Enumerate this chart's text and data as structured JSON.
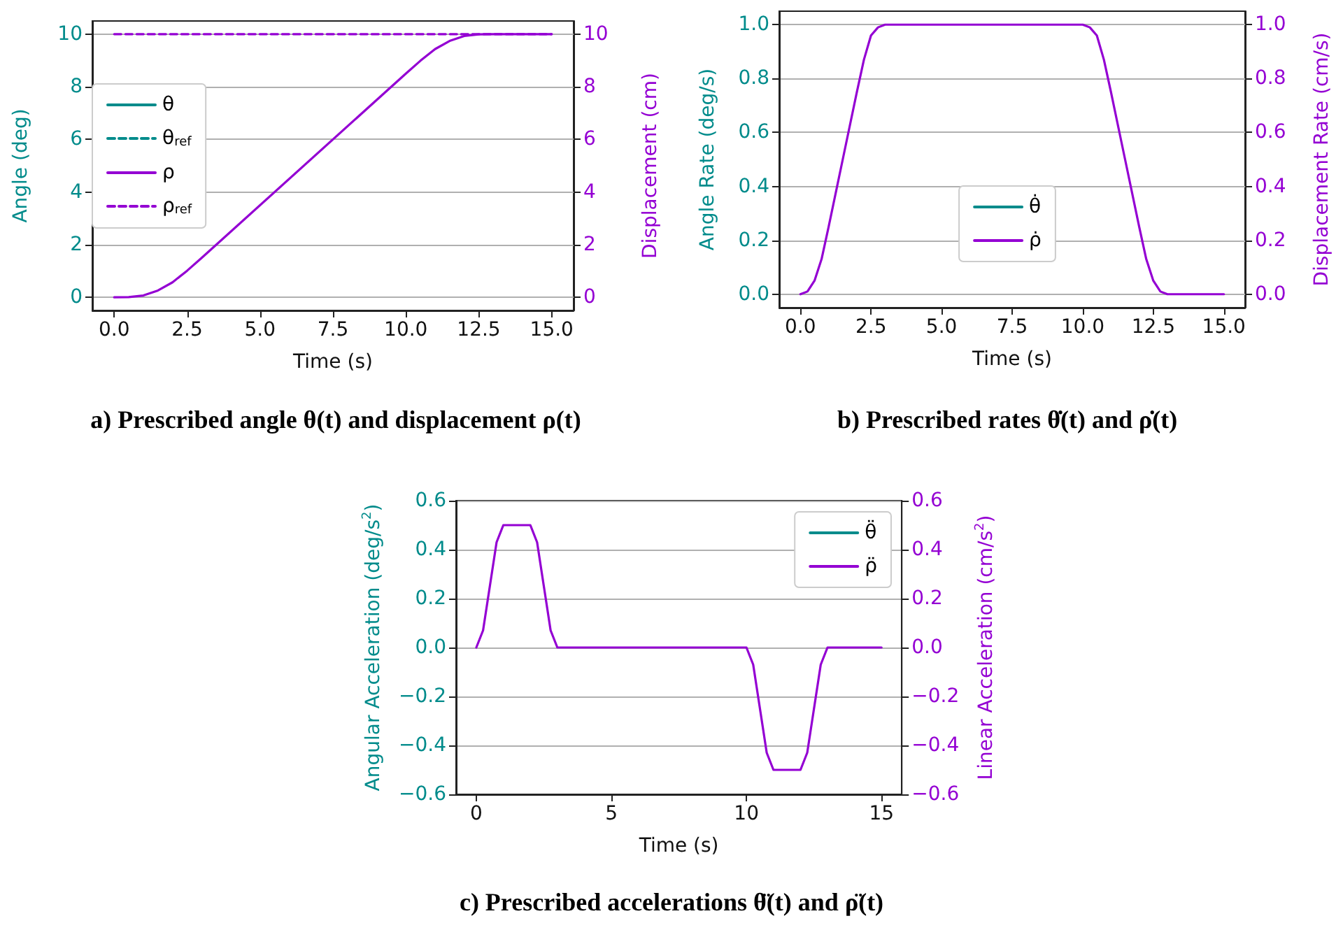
{
  "chart_data": [
    {
      "type": "line",
      "title": "a) Prescribed angle θ(t) and displacement ρ(t)",
      "xlabel": "Time (s)",
      "ylabel": "Angle (deg)",
      "y2label": "Displacement (cm)",
      "xlim": [
        -0.75,
        15.75
      ],
      "xticks": [
        {
          "value": 0,
          "label": "0.0"
        },
        {
          "value": 2.5,
          "label": "2.5"
        },
        {
          "value": 5,
          "label": "5.0"
        },
        {
          "value": 7.5,
          "label": "7.5"
        },
        {
          "value": 10,
          "label": "10.0"
        },
        {
          "value": 12.5,
          "label": "12.5"
        },
        {
          "value": 15,
          "label": "15.0"
        }
      ],
      "ylim": [
        -0.5,
        10.5
      ],
      "yticks": [
        0,
        2,
        4,
        6,
        8,
        10
      ],
      "y2lim": [
        -0.5,
        10.5
      ],
      "y2ticks": [
        0,
        2,
        4,
        6,
        8,
        10
      ],
      "grid": "y",
      "legend": "left",
      "marker": "none",
      "line_style": "solid",
      "x": [
        0,
        0.5,
        1,
        1.5,
        2,
        2.5,
        3,
        10,
        10.5,
        11,
        11.5,
        12,
        12.5,
        13,
        15
      ],
      "series": [
        {
          "name": "θ",
          "color": "#008b8b",
          "axis": "y",
          "values": [
            null,
            null,
            null,
            null,
            null,
            null,
            null,
            null,
            null,
            null,
            null,
            null,
            null,
            null,
            null
          ]
        },
        {
          "name": "θ$_{ref}$",
          "color": "#008b8b",
          "axis": "y",
          "line_style": "dashed",
          "values": [
            null,
            null,
            null,
            null,
            null,
            null,
            null,
            null,
            null,
            null,
            null,
            null,
            null,
            null,
            null
          ]
        },
        {
          "name": "ρ",
          "color": "#9400d3",
          "axis": "y2",
          "values": [
            0,
            0.01,
            0.07,
            0.26,
            0.57,
            1.01,
            1.5,
            8.5,
            8.99,
            9.43,
            9.74,
            9.93,
            9.99,
            10,
            10
          ]
        },
        {
          "name": "ρ$_{ref}$",
          "color": "#9400d3",
          "axis": "y2",
          "line_style": "dashed",
          "x": [
            0,
            15
          ],
          "values": [
            10,
            10
          ]
        }
      ]
    },
    {
      "type": "line",
      "title": "b) Prescribed rates θ̇(t) and ρ̇(t)",
      "xlabel": "Time (s)",
      "ylabel": "Angle Rate (deg/s)",
      "y2label": "Displacement Rate (cm/s)",
      "xlim": [
        -0.75,
        15.75
      ],
      "xticks": [
        {
          "value": 0,
          "label": "0.0"
        },
        {
          "value": 2.5,
          "label": "2.5"
        },
        {
          "value": 5,
          "label": "5.0"
        },
        {
          "value": 7.5,
          "label": "7.5"
        },
        {
          "value": 10,
          "label": "10.0"
        },
        {
          "value": 12.5,
          "label": "12.5"
        },
        {
          "value": 15,
          "label": "15.0"
        }
      ],
      "ylim": [
        -0.05,
        1.05
      ],
      "yticks": [
        {
          "value": 0,
          "label": "0.0"
        },
        0.2,
        0.4,
        0.6,
        0.8,
        {
          "value": 1,
          "label": "1.0"
        }
      ],
      "y2lim": [
        -0.05,
        1.05
      ],
      "y2ticks": [
        {
          "value": 0,
          "label": "0.0"
        },
        0.2,
        0.4,
        0.6,
        0.8,
        {
          "value": 1,
          "label": "1.0"
        }
      ],
      "grid": "y",
      "legend": "center",
      "marker": "none",
      "line_style": "solid",
      "x": [
        0,
        0.25,
        0.5,
        0.75,
        1,
        1.5,
        2,
        2.25,
        2.5,
        2.75,
        3,
        10,
        10.25,
        10.5,
        10.75,
        11,
        11.5,
        12,
        12.25,
        12.5,
        12.75,
        13,
        15
      ],
      "series": [
        {
          "name": "θ̇",
          "color": "#008b8b",
          "axis": "y",
          "values": [
            null,
            null,
            null,
            null,
            null,
            null,
            null,
            null,
            null,
            null,
            null,
            null,
            null,
            null,
            null,
            null,
            null,
            null,
            null,
            null,
            null,
            null,
            null
          ]
        },
        {
          "name": "ρ̇",
          "color": "#9400d3",
          "axis": "y2",
          "values": [
            0,
            0.01,
            0.05,
            0.13,
            0.25,
            0.5,
            0.75,
            0.87,
            0.96,
            0.99,
            1,
            1,
            0.99,
            0.96,
            0.87,
            0.75,
            0.5,
            0.25,
            0.13,
            0.05,
            0.01,
            0,
            0
          ]
        }
      ]
    },
    {
      "type": "line",
      "title": "c) Prescribed accelerations θ̈(t) and ρ̈(t)",
      "xlabel": "Time (s)",
      "ylabel": "Angular Acceleration (deg/s$^{2}$)",
      "y2label": "Linear Acceleration (cm/s$^{2}$)",
      "xlim": [
        -0.75,
        15.75
      ],
      "xticks": [
        0,
        5,
        10,
        15
      ],
      "ylim": [
        -0.6,
        0.6
      ],
      "yticks": [
        {
          "value": -0.6,
          "label": "−0.6"
        },
        {
          "value": -0.4,
          "label": "−0.4"
        },
        {
          "value": -0.2,
          "label": "−0.2"
        },
        {
          "value": 0,
          "label": "0.0"
        },
        0.2,
        0.4,
        0.6
      ],
      "y2lim": [
        -0.6,
        0.6
      ],
      "y2ticks": [
        {
          "value": -0.6,
          "label": "−0.6"
        },
        {
          "value": -0.4,
          "label": "−0.4"
        },
        {
          "value": -0.2,
          "label": "−0.2"
        },
        {
          "value": 0,
          "label": "0.0"
        },
        0.2,
        0.4,
        0.6
      ],
      "grid": "y",
      "legend": "top right",
      "marker": "none",
      "line_style": "solid",
      "x": [
        0,
        0.25,
        0.5,
        0.75,
        1,
        2,
        2.25,
        2.5,
        2.75,
        3,
        10,
        10.25,
        10.5,
        10.75,
        11,
        12,
        12.25,
        12.5,
        12.75,
        13,
        15
      ],
      "series": [
        {
          "name": "θ̈",
          "color": "#008b8b",
          "axis": "y",
          "values": [
            null,
            null,
            null,
            null,
            null,
            null,
            null,
            null,
            null,
            null,
            null,
            null,
            null,
            null,
            null,
            null,
            null,
            null,
            null,
            null,
            null
          ]
        },
        {
          "name": "ρ̈",
          "color": "#9400d3",
          "axis": "y2",
          "values": [
            0,
            0.07,
            0.25,
            0.43,
            0.5,
            0.5,
            0.43,
            0.25,
            0.07,
            0,
            0,
            -0.07,
            -0.25,
            -0.43,
            -0.5,
            -0.5,
            -0.43,
            -0.25,
            -0.07,
            0,
            0
          ]
        }
      ]
    }
  ]
}
